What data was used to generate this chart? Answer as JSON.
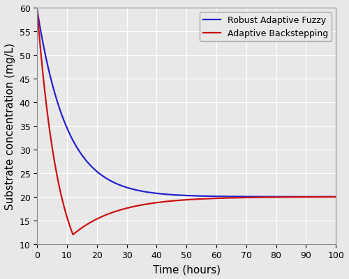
{
  "title": "",
  "xlabel": "Time (hours)",
  "ylabel": "Substrate concentration (mg/L)",
  "xlim": [
    0,
    100
  ],
  "ylim": [
    10,
    60
  ],
  "yticks": [
    10,
    15,
    20,
    25,
    30,
    35,
    40,
    45,
    50,
    55,
    60
  ],
  "xticks": [
    0,
    10,
    20,
    30,
    40,
    50,
    60,
    70,
    80,
    90,
    100
  ],
  "background_color": "#e8e8e8",
  "axes_background": "#e8e8e8",
  "grid_color": "#ffffff",
  "legend": [
    {
      "label": "Robust Adaptive Fuzzy",
      "color": "#2222cc"
    },
    {
      "label": "Adaptive Backstepping",
      "color": "#cc1111"
    }
  ],
  "line_width": 1.6,
  "steady_state": 20.0,
  "S0": 59.5,
  "blue_tau": 10.0,
  "red_S_min": 12.0,
  "red_t_min": 12.0,
  "red_tau_dip": 3.2,
  "red_tau_rec": 15.0
}
